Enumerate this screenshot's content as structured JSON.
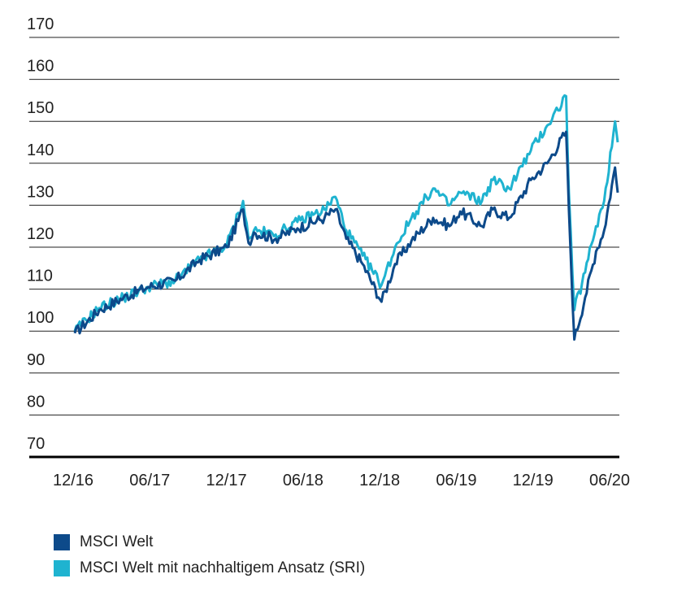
{
  "chart_data": {
    "type": "line",
    "title": "",
    "xlabel": "",
    "ylabel": "",
    "ylim": [
      70,
      170
    ],
    "yticks": [
      70,
      80,
      90,
      100,
      110,
      120,
      130,
      140,
      150,
      160,
      170
    ],
    "xticks": [
      "12/16",
      "06/17",
      "12/17",
      "06/18",
      "12/18",
      "06/19",
      "12/19",
      "06/20"
    ],
    "grid": "horizontal",
    "legend_position": "bottom",
    "x": [
      "12/16",
      "02/17",
      "04/17",
      "06/17",
      "08/17",
      "10/17",
      "12/17",
      "01/18",
      "02/18",
      "03/18",
      "04/18",
      "06/18",
      "08/18",
      "09/18",
      "10/18",
      "11/18",
      "12/18",
      "01/19",
      "02/19",
      "04/19",
      "05/19",
      "06/19",
      "08/19",
      "09/19",
      "10/19",
      "12/19",
      "01/20",
      "02/20",
      "03/20a",
      "03/20b",
      "03/20c",
      "04/20",
      "05/20",
      "06/20a",
      "06/20b"
    ],
    "series": [
      {
        "name": "MSCI Welt",
        "color": "#0d4a8a",
        "values": [
          99.5,
          105,
          108,
          110.5,
          112,
          117,
          120,
          129,
          121,
          123.5,
          122,
          124.5,
          127,
          129,
          122,
          116,
          107,
          116,
          121.5,
          127,
          125,
          128.5,
          125,
          129,
          127,
          136,
          140,
          147.5,
          129,
          98,
          108,
          119,
          124,
          139,
          133
        ]
      },
      {
        "name": "MSCI Welt mit nachhaltigem Ansatz (SRI)",
        "color": "#1fb3d0",
        "values": [
          100,
          105.5,
          108,
          110.5,
          112,
          117,
          120.5,
          131,
          122,
          124,
          123,
          126,
          129,
          132,
          124,
          118,
          111,
          120,
          127,
          134,
          130,
          133,
          131,
          136,
          134,
          143,
          149,
          156,
          133,
          105,
          114,
          125,
          131,
          150,
          145
        ]
      }
    ]
  },
  "legend": {
    "items": [
      {
        "label": "MSCI Welt",
        "color": "#0d4a8a"
      },
      {
        "label": "MSCI Welt mit nachhaltigem Ansatz (SRI)",
        "color": "#1fb3d0"
      }
    ]
  }
}
